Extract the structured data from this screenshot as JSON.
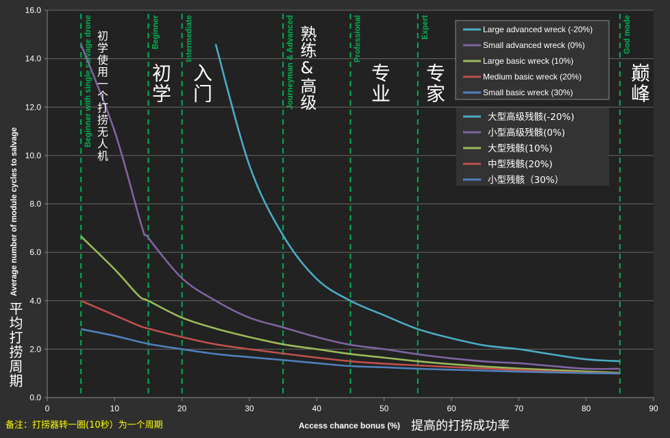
{
  "chart_data": {
    "type": "line",
    "xlabel": "Access chance bonus (%)",
    "xlabel_cn": "提高的打捞成功率",
    "ylabel": "Average number of module cycles to salvage",
    "ylabel_cn": "平均打捞周期",
    "note": "备注：打捞器转一圈(10秒）为一个周期",
    "xlim": [
      0,
      90
    ],
    "ylim": [
      0,
      16
    ],
    "x_ticks": [
      "0",
      "10",
      "20",
      "30",
      "40",
      "50",
      "60",
      "70",
      "80",
      "90"
    ],
    "y_ticks": [
      "0.0",
      "2.0",
      "4.0",
      "6.0",
      "8.0",
      "10.0",
      "12.0",
      "14.0",
      "16.0"
    ],
    "grid": "horizontal",
    "legend_placement": "top-right",
    "background_color": "#222222",
    "series": [
      {
        "name": "Large advanced wreck (-20%)",
        "name_cn": "大型高级残骸(-20%)",
        "color": "#4bacc6",
        "x": [
          25,
          30,
          35,
          40,
          45,
          50,
          55,
          60,
          65,
          70,
          75,
          80,
          85
        ],
        "y": [
          14.6,
          9.6,
          6.7,
          4.9,
          4.0,
          3.4,
          2.83,
          2.45,
          2.15,
          2.0,
          1.78,
          1.58,
          1.5
        ]
      },
      {
        "name": "Small advanced wreck (0%)",
        "name_cn": "小型高级残骸(0%)",
        "color": "#8064a2",
        "x": [
          5,
          10,
          14,
          15,
          20,
          25,
          30,
          35,
          40,
          45,
          50,
          55,
          60,
          66,
          70,
          75,
          80,
          85
        ],
        "y": [
          14.6,
          11.0,
          7.1,
          6.6,
          4.93,
          4.0,
          3.3,
          2.9,
          2.5,
          2.18,
          2.0,
          1.79,
          1.62,
          1.47,
          1.42,
          1.3,
          1.19,
          1.19
        ]
      },
      {
        "name": "Large basic wreck (10%)",
        "name_cn": "大型残骸(10%)",
        "color": "#9bbb59",
        "x": [
          5,
          10,
          13.6,
          15,
          20,
          25,
          30,
          35,
          40,
          45,
          50,
          55,
          60,
          65,
          70,
          75,
          80,
          85
        ],
        "y": [
          6.66,
          5.3,
          4.2,
          4.0,
          3.3,
          2.85,
          2.5,
          2.2,
          2.0,
          1.8,
          1.65,
          1.5,
          1.38,
          1.28,
          1.2,
          1.14,
          1.08,
          1.02
        ]
      },
      {
        "name": "Medium basic wreck (20%)",
        "name_cn": "中型残骸(20%)",
        "color": "#c0504d",
        "x": [
          5,
          10,
          13.6,
          15,
          20,
          25,
          30,
          35,
          40,
          45,
          50,
          55,
          60,
          65,
          70,
          75,
          80,
          85
        ],
        "y": [
          4.0,
          3.4,
          2.97,
          2.85,
          2.5,
          2.2,
          2.0,
          1.82,
          1.65,
          1.5,
          1.4,
          1.33,
          1.26,
          1.2,
          1.14,
          1.08,
          1.03,
          1.0
        ]
      },
      {
        "name": "Small basic wreck (30%)",
        "name_cn": "小型残骸（30%）",
        "color": "#4f81bd",
        "x": [
          5,
          10,
          15,
          20,
          25,
          30,
          35,
          40,
          45,
          50,
          55,
          60,
          65,
          70,
          75,
          80,
          85
        ],
        "y": [
          2.83,
          2.55,
          2.22,
          2.0,
          1.8,
          1.67,
          1.55,
          1.42,
          1.3,
          1.25,
          1.19,
          1.15,
          1.11,
          1.07,
          1.04,
          1.01,
          0.99
        ]
      }
    ],
    "markers": {
      "color": "#00b050",
      "lines": [
        {
          "x": 5,
          "label": "Beginner with single salvage drone",
          "label_cn": "初学使用一个打捞无人机"
        },
        {
          "x": 15,
          "label": "Beginner",
          "label_cn": "初学"
        },
        {
          "x": 20,
          "label": "Intermediate",
          "label_cn": "入门"
        },
        {
          "x": 35,
          "label": "Journeyman & Advanced",
          "label_cn": "熟练&高级"
        },
        {
          "x": 45,
          "label": "Professional",
          "label_cn": "专业"
        },
        {
          "x": 55,
          "label": "Expert",
          "label_cn": "专家"
        },
        {
          "x": 85,
          "label": "God mode",
          "label_cn": "巅峰"
        }
      ]
    }
  }
}
